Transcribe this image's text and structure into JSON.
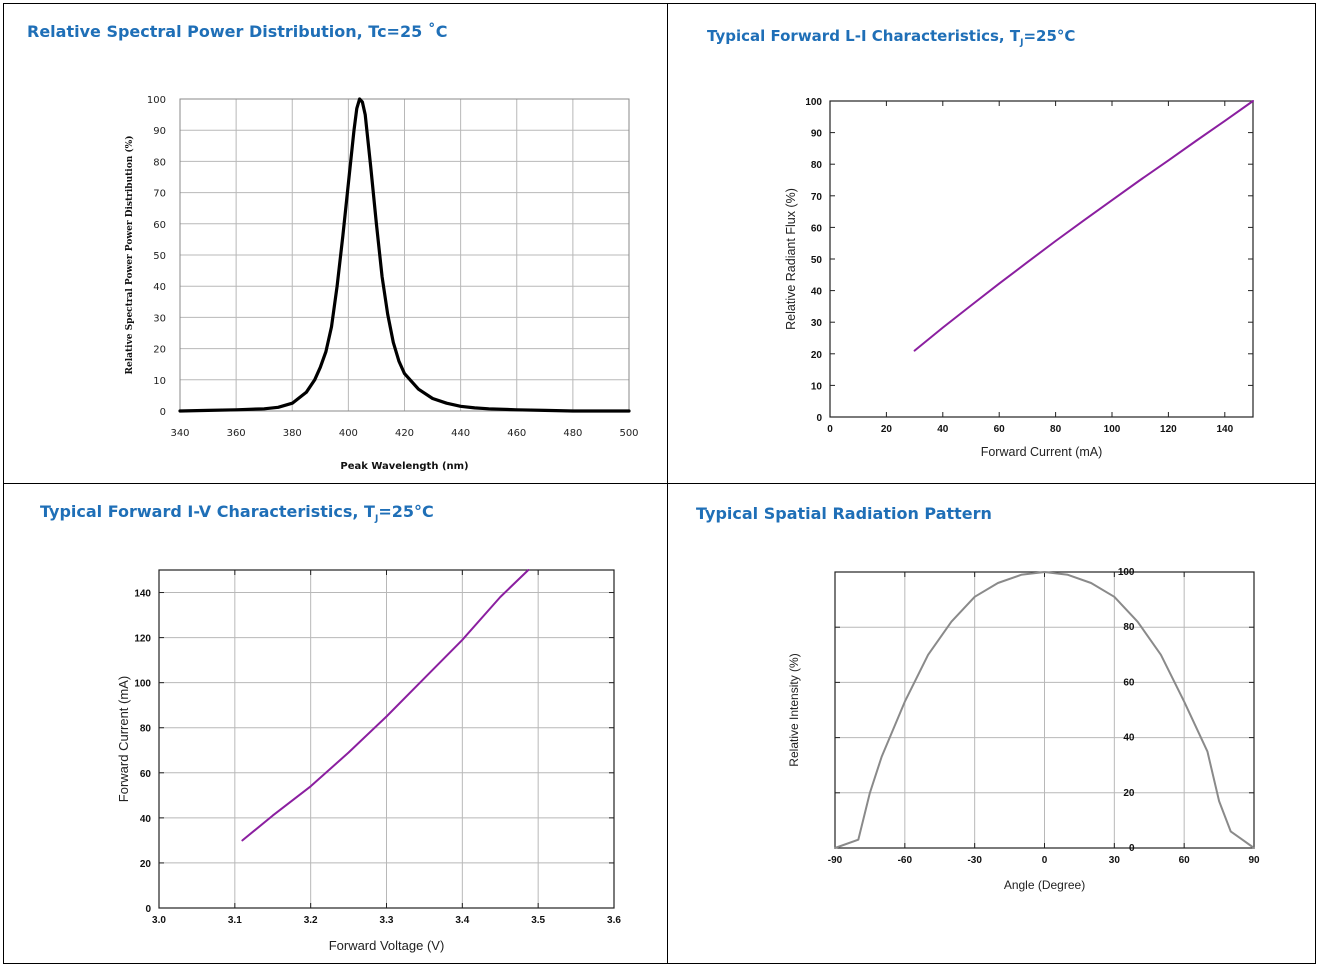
{
  "titles": {
    "spd": "Relative Spectral Power Distribution, Tc=25 ˚C",
    "li_pre": "Typical Forward L-I Characteristics, T",
    "li_sub": "J",
    "li_post": "=25°C",
    "iv_pre": "Typical Forward I-V Characteristics, T",
    "iv_sub": "J",
    "iv_post": "=25°C",
    "spatial": "Typical Spatial Radiation Pattern"
  },
  "colors": {
    "title": "#1f6fb7",
    "spd_line": "#000000",
    "li_line": "#8b1fa0",
    "iv_line": "#8b1fa0",
    "spatial_line": "#8a8a8a"
  },
  "chart_data": [
    {
      "id": "spd",
      "type": "line",
      "xlabel": "Peak Wavelength (nm)",
      "ylabel": "Relative  Spectral Power Power Distribution (%)",
      "xlim": [
        340,
        500
      ],
      "ylim": [
        0,
        100
      ],
      "xticks": [
        340,
        360,
        380,
        400,
        420,
        440,
        460,
        480,
        500
      ],
      "yticks": [
        0,
        10,
        20,
        30,
        40,
        50,
        60,
        70,
        80,
        90,
        100
      ],
      "xtick_labels": [
        "340",
        "360",
        "380",
        "400",
        "420",
        "440",
        "460",
        "480",
        "500"
      ],
      "ytick_labels": [
        "0",
        "10",
        "20",
        "30",
        "40",
        "50",
        "60",
        "70",
        "80",
        "90",
        "100"
      ],
      "grid": true,
      "series": [
        {
          "x": [
            340,
            350,
            360,
            370,
            375,
            380,
            385,
            388,
            390,
            392,
            394,
            396,
            398,
            400,
            402,
            403,
            404,
            405,
            406,
            408,
            410,
            412,
            414,
            416,
            418,
            420,
            425,
            430,
            435,
            440,
            445,
            450,
            460,
            470,
            480,
            500
          ],
          "y": [
            0,
            0.2,
            0.4,
            0.7,
            1.2,
            2.5,
            6,
            10,
            14,
            19,
            27,
            40,
            56,
            73,
            90,
            97,
            100,
            99,
            95,
            78,
            60,
            43,
            31,
            22,
            16,
            12,
            7,
            4,
            2.5,
            1.5,
            1,
            0.7,
            0.4,
            0.2,
            0,
            0
          ]
        }
      ]
    },
    {
      "id": "li",
      "type": "line",
      "xlabel": "Forward Current (mA)",
      "ylabel": "Relative Radiant Flux (%)",
      "xlim": [
        0,
        150
      ],
      "ylim": [
        0,
        100
      ],
      "xticks": [
        0,
        20,
        40,
        60,
        80,
        100,
        120,
        140
      ],
      "yticks": [
        0,
        10,
        20,
        30,
        40,
        50,
        60,
        70,
        80,
        90,
        100
      ],
      "xtick_labels": [
        "0",
        "20",
        "40",
        "60",
        "80",
        "100",
        "120",
        "140"
      ],
      "ytick_labels": [
        "0",
        "10",
        "20",
        "30",
        "40",
        "50",
        "60",
        "70",
        "80",
        "90",
        "100"
      ],
      "grid": false,
      "series": [
        {
          "x": [
            30,
            40,
            50,
            60,
            70,
            80,
            90,
            100,
            110,
            120,
            130,
            140,
            150
          ],
          "y": [
            21,
            28.3,
            35.3,
            42.2,
            49,
            55.7,
            62.2,
            68.6,
            75,
            81.2,
            87.5,
            93.7,
            100
          ]
        }
      ]
    },
    {
      "id": "iv",
      "type": "line",
      "xlabel": "Forward Voltage (V)",
      "ylabel": "Forward Current (mA)",
      "xlim": [
        3.0,
        3.6
      ],
      "ylim": [
        0,
        150
      ],
      "xticks": [
        3.0,
        3.1,
        3.2,
        3.3,
        3.4,
        3.5,
        3.6
      ],
      "yticks": [
        0,
        20,
        40,
        60,
        80,
        100,
        120,
        140
      ],
      "xtick_labels": [
        "3.0",
        "3.1",
        "3.2",
        "3.3",
        "3.4",
        "3.5",
        "3.6"
      ],
      "ytick_labels": [
        "0",
        "20",
        "40",
        "60",
        "80",
        "100",
        "120",
        "140"
      ],
      "grid": true,
      "series": [
        {
          "x": [
            3.11,
            3.15,
            3.2,
            3.25,
            3.3,
            3.35,
            3.4,
            3.45,
            3.487
          ],
          "y": [
            30,
            41,
            54,
            69,
            85,
            102,
            119,
            138,
            150
          ]
        }
      ]
    },
    {
      "id": "spatial",
      "type": "line",
      "xlabel": "Angle (Degree)",
      "ylabel": "Relative Intensity (%)",
      "xlim": [
        -90,
        90
      ],
      "ylim": [
        0,
        100
      ],
      "xticks": [
        -90,
        -60,
        -30,
        0,
        30,
        60,
        90
      ],
      "yticks": [
        0,
        20,
        40,
        60,
        80,
        100
      ],
      "xtick_labels": [
        "-90",
        "-60",
        "-30",
        "0",
        "30",
        "60",
        "90"
      ],
      "ytick_labels": [
        "0",
        "20",
        "40",
        "60",
        "80",
        "100"
      ],
      "grid": true,
      "series": [
        {
          "x": [
            -90,
            -80,
            -75,
            -70,
            -60,
            -50,
            -40,
            -30,
            -20,
            -10,
            0,
            10,
            20,
            30,
            40,
            50,
            60,
            70,
            75,
            80,
            85,
            90
          ],
          "y": [
            0,
            3,
            20,
            33,
            53,
            70,
            82,
            91,
            96,
            99,
            100,
            99,
            96,
            91,
            82,
            70,
            53,
            35,
            17,
            6,
            3,
            0
          ]
        }
      ]
    }
  ]
}
